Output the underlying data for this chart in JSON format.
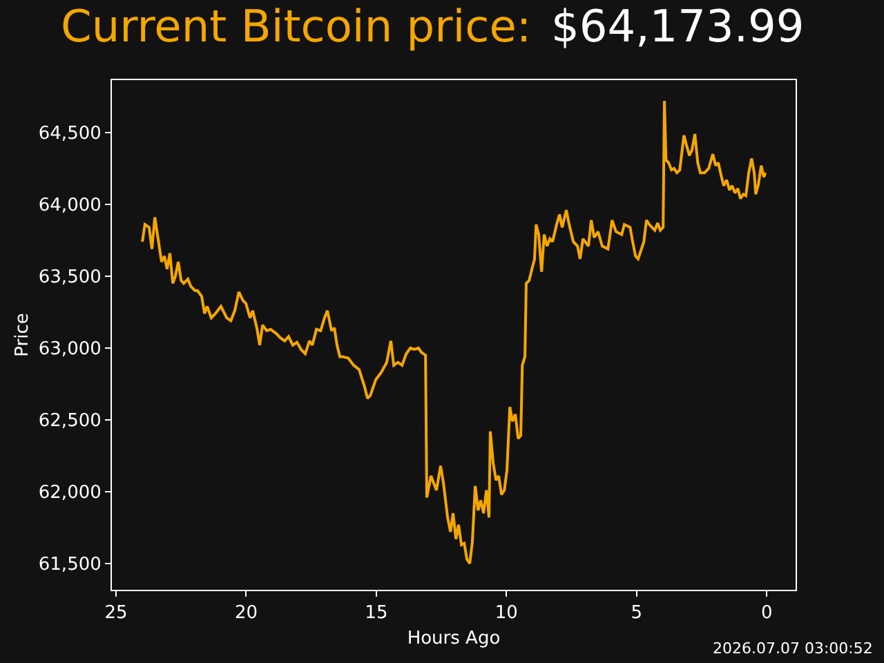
{
  "chart_data": {
    "type": "line",
    "title": "Current Bitcoin price:",
    "subtitle": "$64,173.99",
    "xlabel": "Hours Ago",
    "ylabel": "Price",
    "annotations": [
      "2026.07.07 03:00:52"
    ],
    "xlim": [
      25.16,
      -1.11
    ],
    "xticks": [
      25,
      20,
      15,
      10,
      5,
      0
    ],
    "ylim": [
      61317,
      64865
    ],
    "yticks": [
      {
        "value": 61500,
        "label": "61,500"
      },
      {
        "value": 62000,
        "label": "62,000"
      },
      {
        "value": 62500,
        "label": "62,500"
      },
      {
        "value": 63000,
        "label": "63,000"
      },
      {
        "value": 63500,
        "label": "63,500"
      },
      {
        "value": 64000,
        "label": "64,000"
      },
      {
        "value": 64500,
        "label": "64,500"
      }
    ],
    "grid": false,
    "marker": "none",
    "line_style": "solid",
    "series": [
      {
        "color": "#f5a700",
        "x": [
          23.99,
          23.89,
          23.73,
          23.62,
          23.51,
          23.41,
          23.25,
          23.14,
          23.04,
          22.93,
          22.82,
          22.72,
          22.61,
          22.5,
          22.4,
          22.24,
          22.13,
          21.97,
          21.87,
          21.71,
          21.6,
          21.5,
          21.34,
          21.18,
          20.97,
          20.75,
          20.59,
          20.44,
          20.28,
          20.12,
          20.01,
          19.85,
          19.75,
          19.59,
          19.48,
          19.37,
          19.21,
          19.06,
          18.84,
          18.68,
          18.52,
          18.37,
          18.21,
          18.05,
          17.89,
          17.73,
          17.57,
          17.46,
          17.3,
          17.14,
          16.99,
          16.88,
          16.72,
          16.61,
          16.51,
          16.4,
          16.3,
          16.08,
          15.87,
          15.66,
          15.45,
          15.34,
          15.23,
          15.02,
          14.81,
          14.6,
          14.44,
          14.33,
          14.17,
          14.01,
          13.85,
          13.69,
          13.54,
          13.38,
          13.27,
          13.11,
          13.06,
          12.9,
          12.69,
          12.53,
          12.42,
          12.26,
          12.15,
          12.05,
          11.94,
          11.84,
          11.73,
          11.62,
          11.52,
          11.41,
          11.31,
          11.2,
          11.09,
          10.99,
          10.88,
          10.77,
          10.67,
          10.62,
          10.51,
          10.4,
          10.3,
          10.19,
          10.08,
          9.98,
          9.87,
          9.77,
          9.66,
          9.55,
          9.45,
          9.39,
          9.29,
          9.24,
          9.13,
          9.02,
          8.92,
          8.86,
          8.76,
          8.65,
          8.55,
          8.44,
          8.33,
          8.23,
          8.07,
          7.96,
          7.86,
          7.7,
          7.59,
          7.43,
          7.27,
          7.17,
          7.06,
          6.85,
          6.74,
          6.63,
          6.48,
          6.32,
          6.1,
          5.94,
          5.79,
          5.57,
          5.47,
          5.25,
          5.15,
          5.04,
          4.94,
          4.72,
          4.62,
          4.51,
          4.41,
          4.3,
          4.19,
          4.09,
          3.98,
          3.93,
          3.87,
          3.77,
          3.66,
          3.56,
          3.45,
          3.34,
          3.18,
          3.08,
          2.97,
          2.87,
          2.76,
          2.65,
          2.55,
          2.39,
          2.23,
          2.07,
          1.96,
          1.86,
          1.75,
          1.65,
          1.54,
          1.43,
          1.33,
          1.22,
          1.11,
          1.01,
          0.9,
          0.8,
          0.69,
          0.58,
          0.48,
          0.42,
          0.32,
          0.21,
          0.11,
          0.05
        ],
        "values": [
          63740,
          63860,
          63840,
          63690,
          63910,
          63790,
          63600,
          63640,
          63550,
          63660,
          63450,
          63500,
          63600,
          63470,
          63450,
          63480,
          63430,
          63400,
          63400,
          63360,
          63240,
          63290,
          63210,
          63240,
          63290,
          63210,
          63190,
          63260,
          63390,
          63330,
          63310,
          63210,
          63260,
          63140,
          63020,
          63160,
          63120,
          63130,
          63100,
          63070,
          63050,
          63080,
          63020,
          63040,
          62990,
          62960,
          63050,
          63020,
          63130,
          63120,
          63210,
          63260,
          63120,
          63140,
          63020,
          62940,
          62940,
          62930,
          62880,
          62850,
          62730,
          62650,
          62670,
          62780,
          62830,
          62900,
          63050,
          62880,
          62900,
          62880,
          62960,
          63000,
          62990,
          63000,
          62970,
          62950,
          61960,
          62110,
          62010,
          62180,
          62060,
          61820,
          61720,
          61850,
          61670,
          61770,
          61630,
          61640,
          61530,
          61500,
          61650,
          62040,
          61870,
          61940,
          61850,
          62010,
          61820,
          62420,
          62200,
          62080,
          62110,
          61980,
          62010,
          62150,
          62590,
          62490,
          62540,
          62370,
          62390,
          62880,
          62940,
          63450,
          63470,
          63550,
          63620,
          63860,
          63790,
          63530,
          63790,
          63710,
          63760,
          63740,
          63860,
          63930,
          63840,
          63960,
          63860,
          63740,
          63710,
          63620,
          63760,
          63710,
          63890,
          63770,
          63810,
          63710,
          63690,
          63890,
          63810,
          63790,
          63860,
          63840,
          63740,
          63640,
          63620,
          63740,
          63890,
          63860,
          63840,
          63820,
          63870,
          63820,
          63840,
          64720,
          64310,
          64290,
          64240,
          64250,
          64220,
          64240,
          64480,
          64410,
          64340,
          64380,
          64490,
          64290,
          64220,
          64220,
          64250,
          64350,
          64270,
          64290,
          64200,
          64130,
          64170,
          64100,
          64130,
          64080,
          64110,
          64040,
          64070,
          64060,
          64220,
          64320,
          64220,
          64070,
          64140,
          64270,
          64190,
          64220
        ]
      }
    ]
  }
}
